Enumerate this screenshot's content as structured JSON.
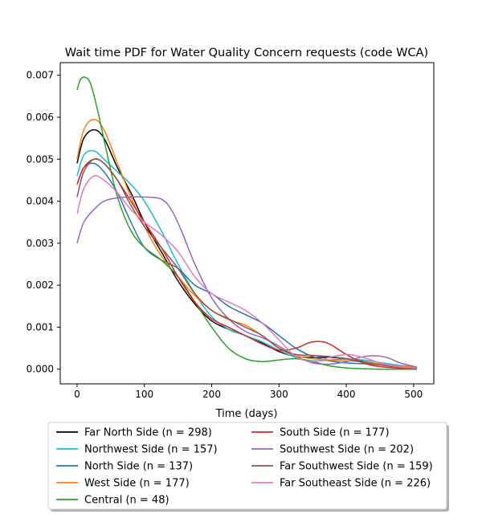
{
  "chart_data": {
    "type": "line",
    "title": "Wait time PDF for Water Quality Concern  requests (code WCA)",
    "xlabel": "Time (days)",
    "ylabel": "",
    "xlim": [
      -25,
      530
    ],
    "ylim": [
      -0.00035,
      0.0073
    ],
    "xticks": [
      0,
      100,
      200,
      300,
      400,
      500
    ],
    "xtick_labels": [
      "0",
      "100",
      "200",
      "300",
      "400",
      "500"
    ],
    "yticks": [
      0,
      0.001,
      0.002,
      0.003,
      0.004,
      0.005,
      0.006,
      0.007
    ],
    "ytick_labels": [
      "0.000",
      "0.001",
      "0.002",
      "0.003",
      "0.004",
      "0.005",
      "0.006",
      "0.007"
    ],
    "grid": false,
    "legend_position": "bottom-center, below plot, 2 columns",
    "series": [
      {
        "name": "Far North Side (n = 298)",
        "color": "#000000",
        "x": [
          0,
          10,
          25,
          40,
          60,
          80,
          100,
          125,
          150,
          175,
          200,
          225,
          250,
          275,
          300,
          325,
          350,
          375,
          400,
          425,
          450,
          475,
          505
        ],
        "y": [
          0.0049,
          0.0055,
          0.0057,
          0.0055,
          0.0048,
          0.0042,
          0.0035,
          0.0028,
          0.0021,
          0.00155,
          0.00115,
          0.00095,
          0.0008,
          0.00062,
          0.00042,
          0.0003,
          0.00028,
          0.00028,
          0.00025,
          0.00018,
          0.00012,
          8e-05,
          4e-05
        ]
      },
      {
        "name": "Northwest Side (n = 157)",
        "color": "#17becf",
        "x": [
          0,
          10,
          25,
          40,
          60,
          80,
          100,
          125,
          150,
          175,
          200,
          225,
          250,
          275,
          300,
          325,
          350,
          375,
          400,
          425,
          450,
          475,
          505
        ],
        "y": [
          0.0046,
          0.0051,
          0.0052,
          0.005,
          0.0047,
          0.0044,
          0.004,
          0.0033,
          0.0025,
          0.0018,
          0.00125,
          0.00095,
          0.0008,
          0.00065,
          0.00045,
          0.00028,
          0.0002,
          0.00022,
          0.00024,
          0.00022,
          0.00016,
          0.0001,
          5e-05
        ]
      },
      {
        "name": "North Side (n = 137)",
        "color": "#1f77b4",
        "x": [
          0,
          10,
          25,
          40,
          60,
          80,
          100,
          125,
          150,
          175,
          200,
          225,
          250,
          275,
          300,
          325,
          350,
          375,
          400,
          425,
          450,
          475,
          505
        ],
        "y": [
          0.0044,
          0.0048,
          0.0049,
          0.0047,
          0.0042,
          0.0035,
          0.0029,
          0.0026,
          0.0024,
          0.002,
          0.0018,
          0.0015,
          0.0013,
          0.0011,
          0.0008,
          0.0005,
          0.0003,
          0.0002,
          0.00015,
          0.00013,
          0.00011,
          8e-05,
          5e-05
        ]
      },
      {
        "name": "West Side (n = 177)",
        "color": "#ff7f0e",
        "x": [
          0,
          10,
          25,
          40,
          60,
          80,
          100,
          125,
          150,
          175,
          200,
          225,
          250,
          275,
          300,
          325,
          350,
          375,
          400,
          425,
          450,
          475,
          505
        ],
        "y": [
          0.005,
          0.0057,
          0.00595,
          0.0057,
          0.0049,
          0.0041,
          0.0034,
          0.0027,
          0.0022,
          0.00175,
          0.0014,
          0.00118,
          0.00105,
          0.0008,
          0.0005,
          0.00032,
          0.00025,
          0.00022,
          0.0002,
          0.00017,
          0.00012,
          8e-05,
          5e-05
        ]
      },
      {
        "name": "Central (n = 48)",
        "color": "#2ca02c",
        "x": [
          0,
          5,
          12,
          20,
          30,
          45,
          60,
          80,
          100,
          125,
          150,
          175,
          200,
          225,
          250,
          275,
          300,
          325,
          350,
          375,
          400,
          425,
          450,
          475,
          505
        ],
        "y": [
          0.00665,
          0.0069,
          0.00695,
          0.0068,
          0.0062,
          0.0051,
          0.0041,
          0.0033,
          0.0029,
          0.0026,
          0.0022,
          0.0016,
          0.001,
          0.0005,
          0.00025,
          0.00018,
          0.00022,
          0.00025,
          0.00018,
          8e-05,
          3e-05,
          1e-05,
          0.0,
          0.0,
          0.0
        ]
      },
      {
        "name": "South Side (n = 177)",
        "color": "#d62728",
        "x": [
          0,
          10,
          25,
          40,
          60,
          80,
          100,
          125,
          150,
          175,
          200,
          225,
          250,
          275,
          300,
          325,
          345,
          360,
          375,
          400,
          425,
          450,
          475,
          505
        ],
        "y": [
          0.0044,
          0.0048,
          0.005,
          0.0049,
          0.0045,
          0.004,
          0.0035,
          0.0029,
          0.0022,
          0.0016,
          0.0012,
          0.001,
          0.0008,
          0.0006,
          0.00045,
          0.0005,
          0.00063,
          0.00066,
          0.0006,
          0.00035,
          0.00015,
          6e-05,
          3e-05,
          2e-05
        ]
      },
      {
        "name": "Southwest Side (n = 202)",
        "color": "#9467bd",
        "x": [
          0,
          10,
          25,
          40,
          60,
          80,
          100,
          125,
          140,
          155,
          175,
          200,
          225,
          250,
          275,
          300,
          325,
          350,
          375,
          400,
          420,
          440,
          460,
          480,
          505
        ],
        "y": [
          0.003,
          0.0035,
          0.0038,
          0.004,
          0.00408,
          0.0041,
          0.0041,
          0.00405,
          0.0038,
          0.0033,
          0.0025,
          0.0017,
          0.0012,
          0.0009,
          0.00075,
          0.00055,
          0.0003,
          0.00015,
          0.00012,
          0.00018,
          0.00028,
          0.00032,
          0.00028,
          0.00015,
          5e-05
        ]
      },
      {
        "name": "Far Southwest Side (n = 159)",
        "color": "#8c564b",
        "x": [
          0,
          10,
          25,
          40,
          60,
          80,
          100,
          125,
          150,
          175,
          200,
          225,
          250,
          275,
          300,
          325,
          350,
          375,
          400,
          425,
          450,
          475,
          505
        ],
        "y": [
          0.0041,
          0.0047,
          0.005,
          0.0049,
          0.0045,
          0.0039,
          0.0034,
          0.0029,
          0.0024,
          0.0018,
          0.0014,
          0.0012,
          0.001,
          0.0008,
          0.0005,
          0.00035,
          0.00033,
          0.0003,
          0.00025,
          0.00016,
          0.0001,
          5e-05,
          2e-05
        ]
      },
      {
        "name": "Far Southeast Side (n = 226)",
        "color": "#e377c2",
        "x": [
          0,
          10,
          25,
          40,
          60,
          80,
          100,
          125,
          150,
          175,
          200,
          225,
          250,
          275,
          300,
          325,
          350,
          375,
          400,
          425,
          450,
          475,
          505
        ],
        "y": [
          0.0037,
          0.0043,
          0.0046,
          0.0045,
          0.0042,
          0.0038,
          0.0035,
          0.0032,
          0.0028,
          0.0022,
          0.0018,
          0.0016,
          0.0014,
          0.0011,
          0.0007,
          0.0003,
          0.00018,
          0.00028,
          0.00035,
          0.00028,
          0.00015,
          6e-05,
          3e-05
        ]
      }
    ]
  }
}
